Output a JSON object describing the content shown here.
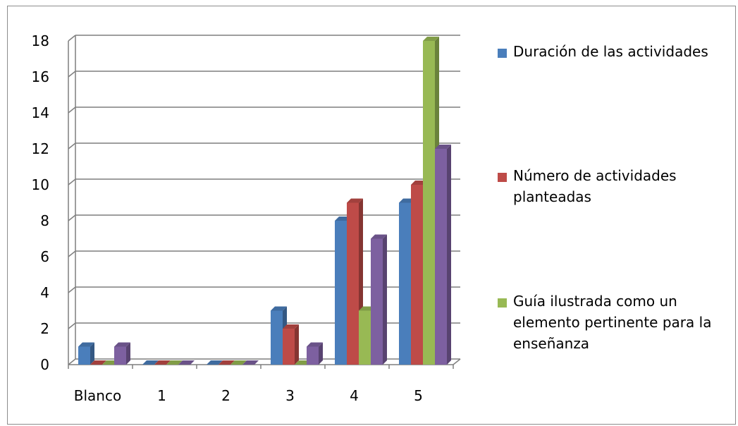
{
  "chart_data": {
    "type": "bar",
    "style": "3d-clustered-column",
    "categories": [
      "Blanco",
      "1",
      "2",
      "3",
      "4",
      "5"
    ],
    "series": [
      {
        "name": "Duración de las actividades",
        "values": [
          1,
          0,
          0,
          3,
          8,
          9
        ]
      },
      {
        "name": "Número de actividades planteadas",
        "values": [
          0,
          0,
          0,
          2,
          9,
          10
        ]
      },
      {
        "name": "Guía ilustrada como un elemento pertinente para la enseñanza",
        "values": [
          0,
          0,
          0,
          0,
          3,
          18
        ]
      },
      {
        "name": "",
        "values": [
          1,
          0,
          0,
          1,
          7,
          12
        ]
      }
    ],
    "ylim": [
      0,
      18
    ],
    "yticks": [
      "0",
      "2",
      "4",
      "6",
      "8",
      "10",
      "12",
      "14",
      "16",
      "18"
    ],
    "grid": true,
    "legend_position": "right",
    "colors": [
      "#4a7ebb",
      "#be4b48",
      "#98b954",
      "#7d60a0"
    ]
  },
  "legend": [
    {
      "label": "Duración de las actividades",
      "color": "#4a7ebb"
    },
    {
      "label": "Número de actividades planteadas",
      "color": "#be4b48"
    },
    {
      "label": "Guía ilustrada como un elemento pertinente para la enseñanza",
      "color": "#98b954"
    }
  ]
}
